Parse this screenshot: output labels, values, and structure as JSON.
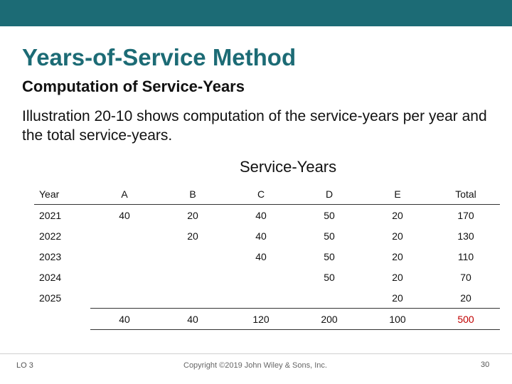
{
  "header": {
    "title": "Years-of-Service Method",
    "subtitle": "Computation of Service-Years"
  },
  "body": {
    "text": "Illustration 20-10 shows computation of the service-years per year and the total service-years."
  },
  "table": {
    "caption": "Service-Years",
    "columns": [
      "Year",
      "A",
      "B",
      "C",
      "D",
      "E",
      "Total"
    ],
    "rows": [
      [
        "2021",
        "40",
        "20",
        "40",
        "50",
        "20",
        "170"
      ],
      [
        "2022",
        "",
        "20",
        "40",
        "50",
        "20",
        "130"
      ],
      [
        "2023",
        "",
        "",
        "40",
        "50",
        "20",
        "110"
      ],
      [
        "2024",
        "",
        "",
        "",
        "50",
        "20",
        "70"
      ],
      [
        "2025",
        "",
        "",
        "",
        "",
        "20",
        "20"
      ]
    ],
    "totals": [
      "",
      "40",
      "40",
      "120",
      "200",
      "100",
      "500"
    ],
    "highlight_color": "#c00000"
  },
  "footer": {
    "lo": "LO 3",
    "copyright": "Copyright ©2019 John Wiley & Sons, Inc.",
    "page": "30"
  },
  "colors": {
    "accent": "#1c6b75"
  }
}
